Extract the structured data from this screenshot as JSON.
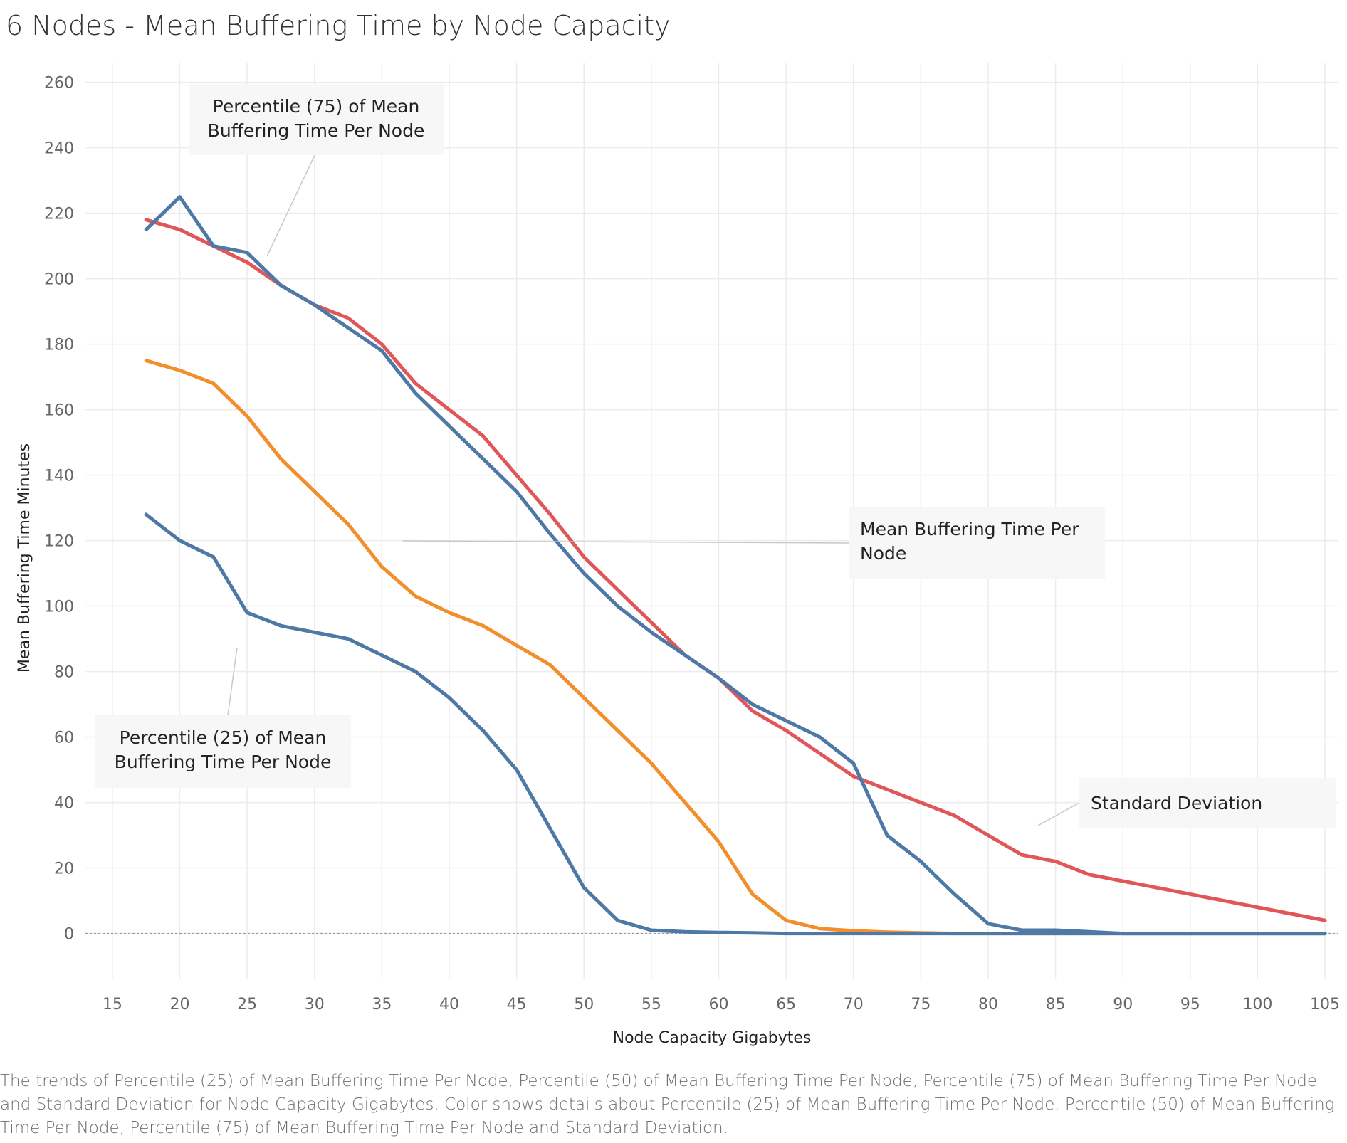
{
  "caption": "The trends of Percentile (25) of Mean Buffering Time Per Node, Percentile (50) of Mean Buffering Time Per Node, Percentile (75) of Mean Buffering Time Per Node and Standard Deviation for Node Capacity Gigabytes.  Color shows details about Percentile (25) of Mean Buffering Time Per Node, Percentile (50) of Mean Buffering Time Per Node, Percentile (75) of Mean Buffering Time Per Node and Standard Deviation.",
  "chart_data": {
    "type": "line",
    "title": "6 Nodes - Mean Buffering Time by Node Capacity",
    "xlabel": "Node Capacity Gigabytes",
    "ylabel": "Mean Buffering Time Minutes",
    "xlim": [
      13,
      106
    ],
    "ylim": [
      -14,
      266
    ],
    "xticks": [
      15,
      20,
      25,
      30,
      35,
      40,
      45,
      50,
      55,
      60,
      65,
      70,
      75,
      80,
      85,
      90,
      95,
      100,
      105
    ],
    "yticks": [
      0,
      20,
      40,
      60,
      80,
      100,
      120,
      140,
      160,
      180,
      200,
      220,
      240,
      260
    ],
    "grid": true,
    "zero_line": true,
    "annotations": [
      {
        "text": [
          "Percentile (75) of Mean",
          "Buffering Time Per Node"
        ]
      },
      {
        "text": [
          "Mean Buffering Time Per",
          "Node"
        ]
      },
      {
        "text": [
          "Percentile (25) of Mean",
          "Buffering Time Per Node"
        ]
      },
      {
        "text": [
          "Standard Deviation"
        ]
      }
    ],
    "series": [
      {
        "name": "Percentile (75) of Mean Buffering Time Per Node",
        "color": "#e15759",
        "x": [
          17.5,
          20,
          22.5,
          25,
          27.5,
          30,
          32.5,
          35,
          37.5,
          40,
          42.5,
          45,
          47.5,
          50,
          52.5,
          55,
          57.5,
          60,
          62.5,
          65,
          67.5,
          70,
          72.5,
          75,
          77.5,
          80,
          82.5,
          85,
          87.5,
          90,
          92.5,
          95,
          97.5,
          100,
          102.5,
          105
        ],
        "values": [
          218,
          215,
          210,
          205,
          198,
          192,
          188,
          180,
          168,
          160,
          152,
          140,
          128,
          115,
          105,
          95,
          85,
          78,
          68,
          62,
          55,
          48,
          44,
          40,
          36,
          30,
          24,
          22,
          18,
          16,
          14,
          12,
          10,
          8,
          6,
          4
        ]
      },
      {
        "name": "Percentile (50) of Mean Buffering Time Per Node",
        "color": "#f28e2b",
        "x": [
          17.5,
          20,
          22.5,
          25,
          27.5,
          30,
          32.5,
          35,
          37.5,
          40,
          42.5,
          45,
          47.5,
          50,
          52.5,
          55,
          57.5,
          60,
          62.5,
          65,
          67.5,
          70,
          72.5,
          75,
          77.5,
          80,
          82.5,
          85,
          87.5,
          90,
          92.5,
          95,
          97.5,
          100,
          102.5,
          105
        ],
        "values": [
          175,
          172,
          168,
          158,
          145,
          135,
          125,
          112,
          103,
          98,
          94,
          88,
          82,
          72,
          62,
          52,
          40,
          28,
          12,
          4,
          1.5,
          0.8,
          0.4,
          0.2,
          0,
          0,
          0,
          0,
          0,
          0,
          0,
          0,
          0,
          0,
          0,
          0
        ]
      },
      {
        "name": "Standard Deviation",
        "color": "#4e79a7",
        "x": [
          17.5,
          20,
          22.5,
          25,
          27.5,
          30,
          32.5,
          35,
          37.5,
          40,
          42.5,
          45,
          47.5,
          50,
          52.5,
          55,
          57.5,
          60,
          62.5,
          65,
          67.5,
          70,
          72.5,
          75,
          77.5,
          80,
          82.5,
          85,
          87.5,
          90,
          92.5,
          95,
          97.5,
          100,
          102.5,
          105
        ],
        "values": [
          215,
          225,
          210,
          208,
          198,
          192,
          185,
          178,
          165,
          155,
          145,
          135,
          122,
          110,
          100,
          92,
          85,
          78,
          70,
          65,
          60,
          52,
          30,
          22,
          12,
          3,
          1,
          1,
          0.5,
          0,
          0,
          0,
          0,
          0,
          0,
          0
        ]
      },
      {
        "name": "Percentile (25) of Mean Buffering Time Per Node",
        "color": "#4e79a7",
        "x": [
          17.5,
          20,
          22.5,
          25,
          27.5,
          30,
          32.5,
          35,
          37.5,
          40,
          42.5,
          45,
          47.5,
          50,
          52.5,
          55,
          57.5,
          60,
          62.5,
          65,
          67.5,
          70,
          72.5,
          75,
          77.5,
          80,
          82.5,
          85,
          87.5,
          90,
          92.5,
          95,
          97.5,
          100,
          102.5,
          105
        ],
        "values": [
          128,
          120,
          115,
          98,
          94,
          92,
          90,
          85,
          80,
          72,
          62,
          50,
          32,
          14,
          4,
          1,
          0.5,
          0.3,
          0.2,
          0,
          0,
          0,
          0,
          0,
          0,
          0,
          0,
          0,
          0,
          0,
          0,
          0,
          0,
          0,
          0,
          0
        ]
      }
    ]
  }
}
